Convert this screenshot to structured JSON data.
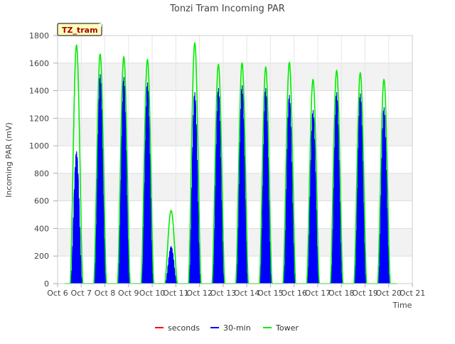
{
  "chart_data": {
    "type": "line",
    "title": "Tonzi Tram Incoming PAR",
    "xlabel": "Time",
    "ylabel": "Incoming PAR (mV)",
    "site_badge": "TZ_tram",
    "xlim": [
      6,
      21
    ],
    "ylim": [
      0,
      1800
    ],
    "x_ticks": [
      6,
      7,
      8,
      9,
      10,
      11,
      12,
      13,
      14,
      15,
      16,
      17,
      18,
      19,
      20,
      21
    ],
    "x_tick_labels": [
      "Oct 6",
      "Oct 7",
      "Oct 8",
      "Oct 9",
      "Oct 10",
      "Oct 11",
      "Oct 12",
      "Oct 13",
      "Oct 14",
      "Oct 15",
      "Oct 16",
      "Oct 17",
      "Oct 18",
      "Oct 19",
      "Oct 20",
      "Oct 21"
    ],
    "y_ticks": [
      0,
      200,
      400,
      600,
      800,
      1000,
      1200,
      1400,
      1600,
      1800
    ],
    "y_tick_labels": [
      "0",
      "200",
      "400",
      "600",
      "800",
      "1000",
      "1200",
      "1400",
      "1600",
      "1800"
    ],
    "grid": true,
    "legend_position": "bottom",
    "series": [
      {
        "name": "seconds",
        "color": "#ff0000",
        "style": "line",
        "x": [],
        "values": []
      },
      {
        "name": "30-min",
        "color": "#0000ff",
        "style": "filled-bars",
        "daily_peaks": [
          {
            "day": 6.8,
            "peak": 960
          },
          {
            "day": 7.8,
            "peak": 1520
          },
          {
            "day": 8.8,
            "peak": 1500
          },
          {
            "day": 9.8,
            "peak": 1460
          },
          {
            "day": 10.8,
            "peak": 270
          },
          {
            "day": 11.8,
            "peak": 1390
          },
          {
            "day": 12.8,
            "peak": 1420
          },
          {
            "day": 13.8,
            "peak": 1440
          },
          {
            "day": 14.8,
            "peak": 1420
          },
          {
            "day": 15.8,
            "peak": 1370
          },
          {
            "day": 16.8,
            "peak": 1260
          },
          {
            "day": 17.8,
            "peak": 1390
          },
          {
            "day": 18.8,
            "peak": 1380
          },
          {
            "day": 19.8,
            "peak": 1280
          }
        ]
      },
      {
        "name": "Tower",
        "color": "#00ee00",
        "style": "line",
        "daily_peaks": [
          {
            "day": 6.8,
            "peak": 1730
          },
          {
            "day": 7.8,
            "peak": 1665
          },
          {
            "day": 8.8,
            "peak": 1645
          },
          {
            "day": 9.8,
            "peak": 1625
          },
          {
            "day": 10.8,
            "peak": 530
          },
          {
            "day": 11.8,
            "peak": 1745
          },
          {
            "day": 12.8,
            "peak": 1590
          },
          {
            "day": 13.8,
            "peak": 1600
          },
          {
            "day": 14.8,
            "peak": 1570
          },
          {
            "day": 15.8,
            "peak": 1605
          },
          {
            "day": 16.8,
            "peak": 1480
          },
          {
            "day": 17.8,
            "peak": 1545
          },
          {
            "day": 18.8,
            "peak": 1530
          },
          {
            "day": 19.8,
            "peak": 1480
          }
        ]
      }
    ]
  }
}
